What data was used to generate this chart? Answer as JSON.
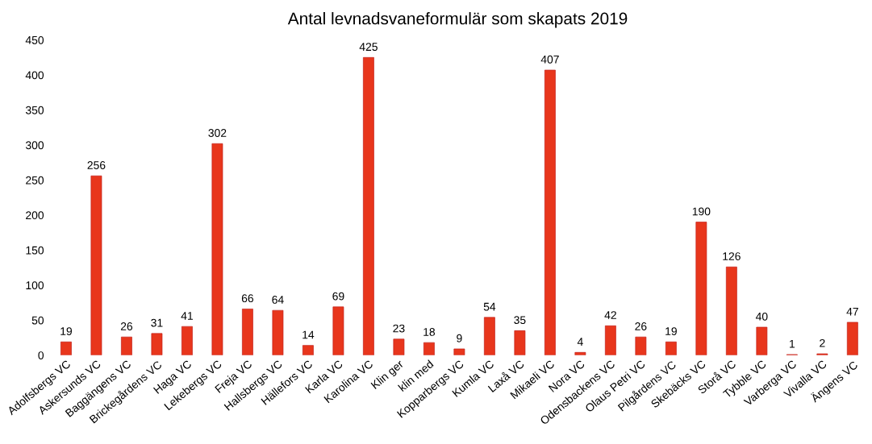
{
  "chart_data": {
    "type": "bar",
    "title": "Antal levnadsvaneformulär som skapats 2019",
    "categories": [
      "Adolfsbergs VC",
      "Askersunds VC",
      "Baggängens VC",
      "Brickegårdens VC",
      "Haga VC",
      "Lekebergs VC",
      "Freja VC",
      "Hallsbergs VC",
      "Hällefors VC",
      "Karla VC",
      "Karolina VC",
      "Klin ger",
      "klin med",
      "Kopparbergs VC",
      "Kumla VC",
      "Laxå VC",
      "Mikaeli VC",
      "Nora VC",
      "Odensbackens VC",
      "Olaus Petri VC",
      "Pilgårdens VC",
      "Skebäcks VC",
      "Storå VC",
      "Tybble VC",
      "Varberga VC",
      "Vivalla VC",
      "Ängens VC"
    ],
    "values": [
      19,
      256,
      26,
      31,
      41,
      302,
      66,
      64,
      14,
      69,
      425,
      23,
      18,
      9,
      54,
      35,
      407,
      4,
      42,
      26,
      19,
      190,
      126,
      40,
      1,
      2,
      47
    ],
    "color": "#e8361c",
    "data_labels": true,
    "grid": false,
    "legend": false,
    "ylim": [
      0,
      450
    ],
    "yticks": [
      0,
      50,
      100,
      150,
      200,
      250,
      300,
      350,
      400,
      450
    ]
  }
}
